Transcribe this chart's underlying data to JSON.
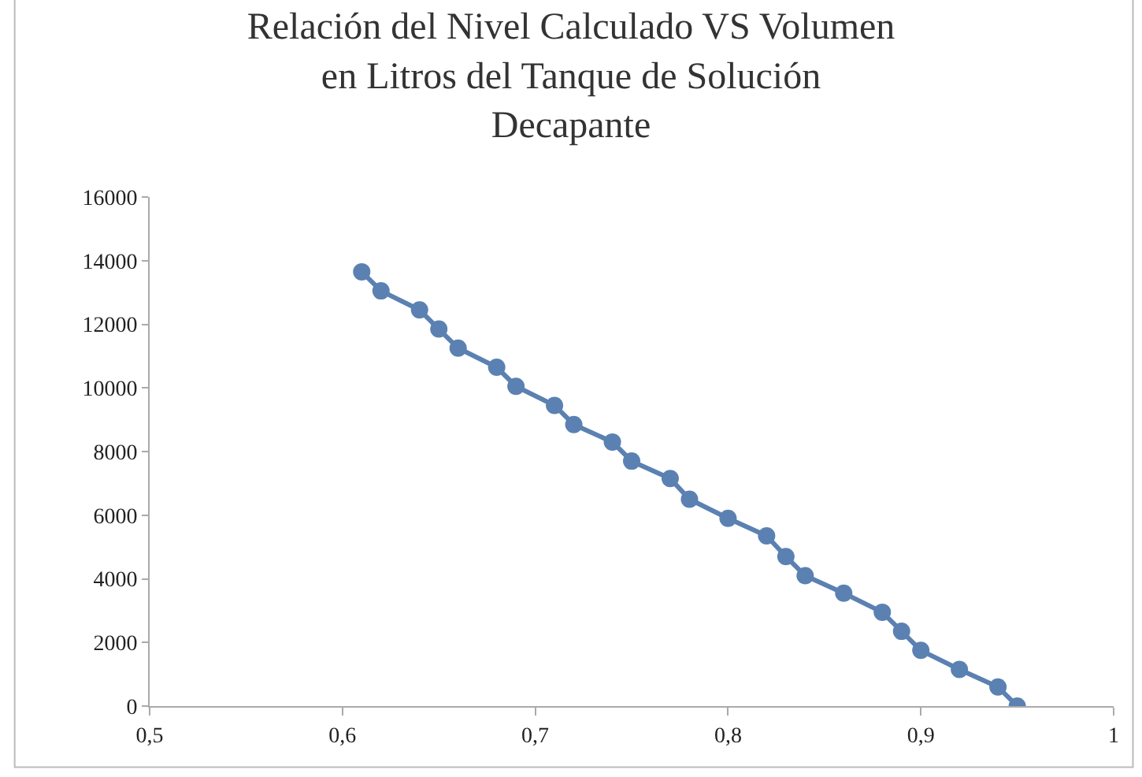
{
  "chart_data": {
    "type": "line",
    "title": "Relación del Nivel Calculado VS Volumen en Litros del Tanque de Solución Decapante",
    "x": [
      0.61,
      0.62,
      0.64,
      0.65,
      0.66,
      0.68,
      0.69,
      0.71,
      0.72,
      0.74,
      0.75,
      0.77,
      0.78,
      0.8,
      0.82,
      0.83,
      0.84,
      0.86,
      0.88,
      0.89,
      0.9,
      0.92,
      0.94,
      0.95
    ],
    "series": [
      {
        "color": "#5b81b2",
        "values": [
          13650,
          13050,
          12450,
          11850,
          11250,
          10650,
          10050,
          9450,
          8850,
          8300,
          7700,
          7150,
          6500,
          5900,
          5350,
          4700,
          4100,
          3550,
          2950,
          2350,
          1750,
          1150,
          600,
          0
        ]
      }
    ],
    "xlim": [
      0.5,
      1
    ],
    "xticks": [
      {
        "value": 0.5,
        "label": "0,5"
      },
      {
        "value": 0.6,
        "label": "0,6"
      },
      {
        "value": 0.7,
        "label": "0,7"
      },
      {
        "value": 0.8,
        "label": "0,8"
      },
      {
        "value": 0.9,
        "label": "0,9"
      },
      1
    ],
    "ylim": [
      0,
      16000
    ],
    "yticks": [
      0,
      2000,
      4000,
      6000,
      8000,
      10000,
      12000,
      14000,
      16000
    ],
    "marker": "circle",
    "line_style": "solid"
  }
}
